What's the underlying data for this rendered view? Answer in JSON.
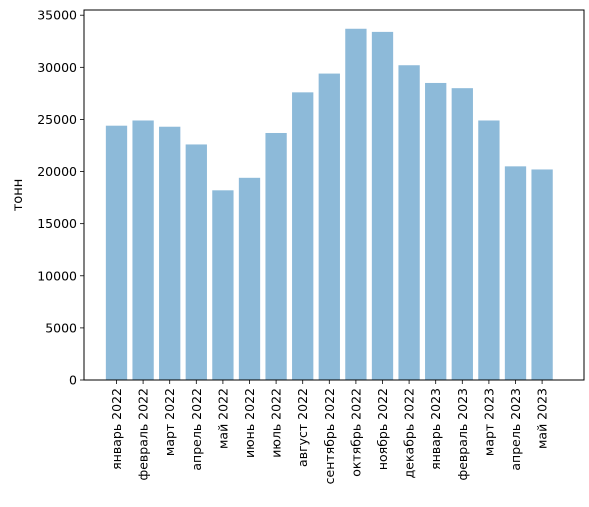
{
  "chart_data": {
    "type": "bar",
    "title": "",
    "xlabel": "",
    "ylabel": "тонн",
    "ylim": [
      0,
      35500
    ],
    "yticks": [
      0,
      5000,
      10000,
      15000,
      20000,
      25000,
      30000,
      35000
    ],
    "ytick_labels": [
      "0",
      "5000",
      "10000",
      "15000",
      "20000",
      "25000",
      "30000",
      "35000"
    ],
    "categories": [
      "январь 2022",
      "февраль 2022",
      "март 2022",
      "апрель 2022",
      "май 2022",
      "июнь 2022",
      "июль 2022",
      "август 2022",
      "сентябрь 2022",
      "октябрь 2022",
      "ноябрь 2022",
      "декабрь 2022",
      "январь 2023",
      "февраль 2023",
      "март 2023",
      "апрель 2023",
      "май 2023"
    ],
    "values": [
      24400,
      24900,
      24300,
      22600,
      18200,
      19400,
      23700,
      27600,
      29400,
      33700,
      33400,
      30200,
      28500,
      28000,
      24900,
      20500,
      20200
    ],
    "bar_color": "#8dbad9",
    "grid": false,
    "legend": "none"
  }
}
